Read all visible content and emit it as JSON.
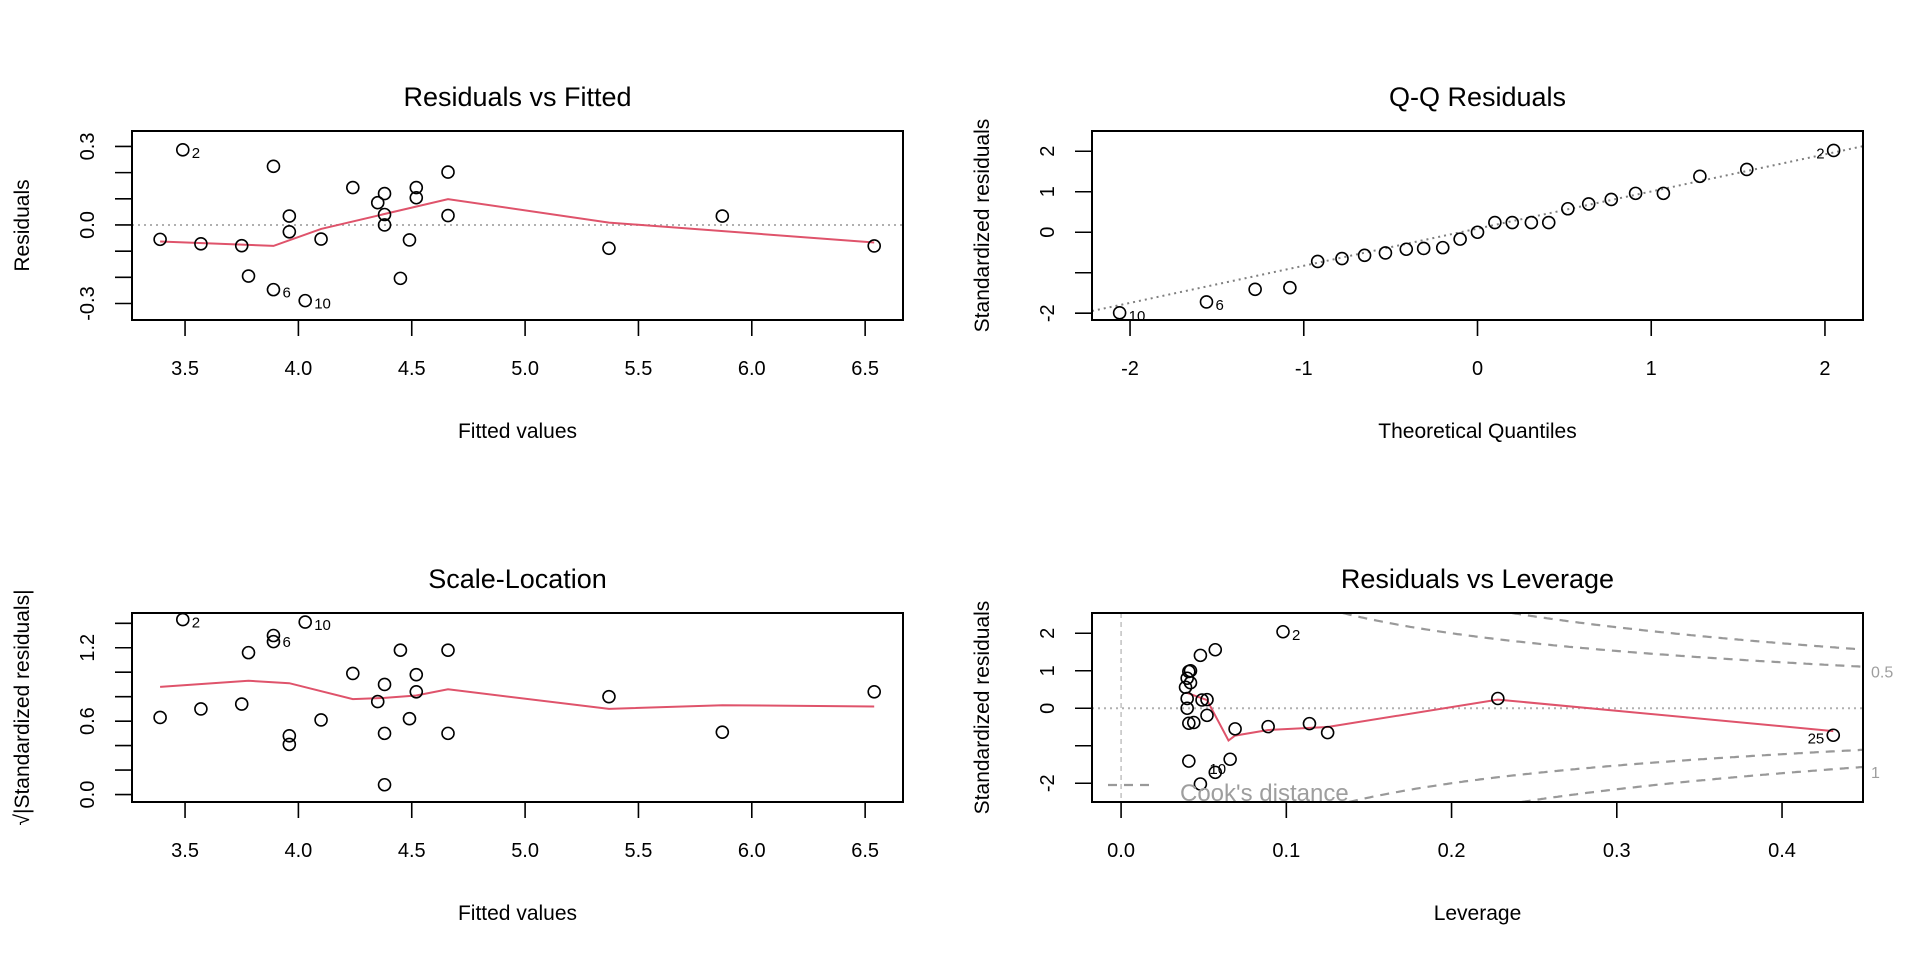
{
  "chart_data": [
    {
      "type": "scatter",
      "title": "Residuals vs Fitted",
      "xlabel": "Fitted values",
      "ylabel": "Residuals",
      "xlim": [
        3.266,
        6.667
      ],
      "ylim": [
        -0.363,
        0.359
      ],
      "xticks": [
        3.5,
        4.0,
        4.5,
        5.0,
        5.5,
        6.0,
        6.5
      ],
      "xtick_labels": [
        "3.5",
        "4.0",
        "4.5",
        "5.0",
        "5.5",
        "6.0",
        "6.5"
      ],
      "yticks": [
        -0.3,
        -0.2,
        -0.1,
        0.0,
        0.1,
        0.2,
        0.3
      ],
      "ytick_labels": [
        "-0.3",
        "",
        "",
        "0.0",
        "",
        "",
        "0.3"
      ],
      "hline": 0,
      "x": [
        3.39,
        3.49,
        3.57,
        3.75,
        3.78,
        3.89,
        3.89,
        3.96,
        3.96,
        4.03,
        4.1,
        4.24,
        4.35,
        4.38,
        4.38,
        4.38,
        4.45,
        4.49,
        4.52,
        4.52,
        4.66,
        4.66,
        5.37,
        5.87,
        6.54
      ],
      "y": [
        -0.055,
        0.287,
        -0.072,
        -0.079,
        -0.195,
        0.224,
        -0.247,
        0.034,
        -0.026,
        -0.289,
        -0.054,
        0.143,
        0.085,
        0.12,
        0.04,
        0.0,
        -0.204,
        -0.057,
        0.143,
        0.104,
        0.202,
        0.036,
        -0.089,
        0.034,
        -0.08
      ],
      "smoother": {
        "x": [
          3.39,
          3.89,
          4.1,
          4.66,
          5.37,
          6.54
        ],
        "y": [
          -0.063,
          -0.08,
          -0.015,
          0.099,
          0.009,
          -0.067
        ],
        "color": "#DF536B"
      },
      "point_labels": [
        {
          "text": "2",
          "x": 3.49,
          "y": 0.287
        },
        {
          "text": "6",
          "x": 3.89,
          "y": -0.247
        },
        {
          "text": "10",
          "x": 4.03,
          "y": -0.289
        }
      ]
    },
    {
      "type": "scatter",
      "title": "Q-Q Residuals",
      "xlabel": "Theoretical Quantiles",
      "ylabel": "Standardized residuals",
      "xlim": [
        -2.219,
        2.219
      ],
      "ylim": [
        -2.167,
        2.5
      ],
      "xticks": [
        -2,
        -1,
        0,
        1,
        2
      ],
      "xtick_labels": [
        "-2",
        "-1",
        "0",
        "1",
        "2"
      ],
      "yticks": [
        -2,
        -1,
        0,
        1,
        2
      ],
      "ytick_labels": [
        "-2",
        "",
        "0",
        "1",
        "2"
      ],
      "x": [
        -2.06,
        -1.56,
        -1.28,
        -1.08,
        -0.92,
        -0.78,
        -0.65,
        -0.53,
        -0.41,
        -0.31,
        -0.2,
        -0.1,
        0.0,
        0.1,
        0.2,
        0.31,
        0.41,
        0.52,
        0.64,
        0.77,
        0.91,
        1.07,
        1.28,
        1.55,
        2.05
      ],
      "y": [
        -1.99,
        -1.72,
        -1.41,
        -1.37,
        -0.72,
        -0.65,
        -0.57,
        -0.51,
        -0.42,
        -0.4,
        -0.38,
        -0.17,
        0.0,
        0.24,
        0.24,
        0.24,
        0.24,
        0.58,
        0.7,
        0.81,
        0.96,
        0.96,
        1.38,
        1.55,
        2.02
      ],
      "refline": {
        "intercept": 0.09,
        "slope": 0.917,
        "color": "#7f7f7f"
      },
      "point_labels": [
        {
          "text": "10",
          "x": -2.06,
          "y": -1.99
        },
        {
          "text": "6",
          "x": -1.56,
          "y": -1.72
        },
        {
          "text": "2",
          "x": 2.05,
          "y": 2.02,
          "side": "left"
        }
      ]
    },
    {
      "type": "scatter",
      "title": "Scale-Location",
      "xlabel": "Fitted values",
      "ylabel": "√|Standardized residuals|",
      "xlim": [
        3.266,
        6.667
      ],
      "ylim": [
        -0.061,
        1.484
      ],
      "xticks": [
        3.5,
        4.0,
        4.5,
        5.0,
        5.5,
        6.0,
        6.5
      ],
      "xtick_labels": [
        "3.5",
        "4.0",
        "4.5",
        "5.0",
        "5.5",
        "6.0",
        "6.5"
      ],
      "yticks": [
        0.0,
        0.2,
        0.4,
        0.6,
        0.8,
        1.0,
        1.2,
        1.4
      ],
      "ytick_labels": [
        "0.0",
        "",
        "",
        "0.6",
        "",
        "",
        "1.2",
        ""
      ],
      "x": [
        3.39,
        3.49,
        3.57,
        3.75,
        3.78,
        3.89,
        3.89,
        3.96,
        3.96,
        4.03,
        4.1,
        4.24,
        4.35,
        4.38,
        4.38,
        4.38,
        4.45,
        4.49,
        4.52,
        4.52,
        4.66,
        4.66,
        5.37,
        5.87,
        6.54
      ],
      "y": [
        0.63,
        1.43,
        0.7,
        0.74,
        1.16,
        1.3,
        1.25,
        0.48,
        0.41,
        1.41,
        0.61,
        0.99,
        0.76,
        0.9,
        0.5,
        0.08,
        1.18,
        0.62,
        0.98,
        0.84,
        1.18,
        0.5,
        0.8,
        0.51,
        0.84
      ],
      "smoother": {
        "x": [
          3.39,
          3.78,
          3.96,
          4.24,
          4.38,
          4.52,
          4.66,
          5.37,
          5.87,
          6.54
        ],
        "y": [
          0.88,
          0.93,
          0.91,
          0.78,
          0.79,
          0.81,
          0.86,
          0.7,
          0.73,
          0.72
        ],
        "color": "#DF536B"
      },
      "point_labels": [
        {
          "text": "2",
          "x": 3.49,
          "y": 1.43
        },
        {
          "text": "6",
          "x": 3.89,
          "y": 1.27
        },
        {
          "text": "10",
          "x": 4.03,
          "y": 1.41
        }
      ]
    },
    {
      "type": "scatter",
      "title": "Residuals vs Leverage",
      "xlabel": "Leverage",
      "ylabel": "Standardized residuals",
      "xlim": [
        -0.0176,
        0.449
      ],
      "ylim": [
        -2.5,
        2.54
      ],
      "xticks": [
        0.0,
        0.1,
        0.2,
        0.3,
        0.4
      ],
      "xtick_labels": [
        "0.0",
        "0.1",
        "0.2",
        "0.3",
        "0.4"
      ],
      "yticks": [
        -2,
        -1,
        0,
        1,
        2
      ],
      "ytick_labels": [
        "-2",
        "",
        "0",
        "1",
        "2"
      ],
      "hline": 0,
      "vline": 0,
      "x": [
        0.098,
        0.057,
        0.048,
        0.041,
        0.042,
        0.04,
        0.042,
        0.039,
        0.04,
        0.049,
        0.052,
        0.04,
        0.052,
        0.041,
        0.044,
        0.069,
        0.089,
        0.114,
        0.125,
        0.228,
        0.431,
        0.041,
        0.066,
        0.057,
        0.048
      ],
      "y": [
        2.04,
        1.56,
        1.41,
        0.98,
        1.0,
        0.8,
        0.68,
        0.56,
        0.26,
        0.22,
        0.23,
        0.0,
        -0.19,
        -0.4,
        -0.38,
        -0.55,
        -0.49,
        -0.41,
        -0.65,
        0.26,
        -0.72,
        -1.41,
        -1.36,
        -1.71,
        -2.02
      ],
      "smoother": {
        "x": [
          0.04,
          0.052,
          0.065,
          0.069,
          0.089,
          0.125,
          0.228,
          0.431
        ],
        "y": [
          0.41,
          0.22,
          -0.86,
          -0.73,
          -0.58,
          -0.5,
          0.23,
          -0.61
        ],
        "color": "#DF536B"
      },
      "point_labels": [
        {
          "text": "2",
          "x": 0.098,
          "y": 2.04
        },
        {
          "text": "10",
          "x": 0.048,
          "y": -2.02
        },
        {
          "text": "25",
          "x": 0.431,
          "y": -0.72,
          "side": "left"
        }
      ],
      "cooks_levels": [
        0.5,
        1
      ],
      "cooks_labels": [
        "0.5",
        "1"
      ],
      "cooks_legend": "Cook's distance"
    }
  ]
}
